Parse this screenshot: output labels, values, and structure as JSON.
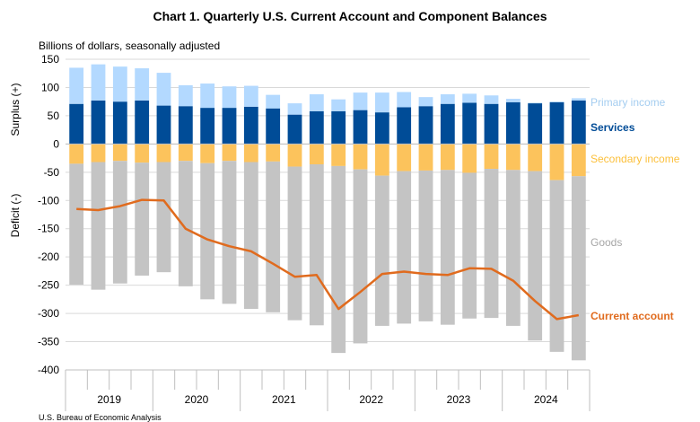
{
  "chart_data": {
    "type": "bar",
    "title": "Chart 1. Quarterly U.S. Current Account and Component Balances",
    "subtitle": "Billions of dollars, seasonally adjusted",
    "ylabel_top": "Surplus (+)",
    "ylabel_bottom": "Deficit (-)",
    "source": "U.S. Bureau of Economic Analysis",
    "ylim": [
      -400,
      150
    ],
    "yticks": [
      150,
      100,
      50,
      0,
      -50,
      -100,
      -150,
      -200,
      -250,
      -300,
      -350,
      -400
    ],
    "years": [
      "2019",
      "2020",
      "2021",
      "2022",
      "2023",
      "2024"
    ],
    "quarters_per_year": 4,
    "stacked": true,
    "series": [
      {
        "name": "Primary income",
        "color": "#b3d9ff",
        "label_color": "#a4cdf0",
        "values": [
          64,
          64,
          62,
          57,
          58,
          37,
          43,
          38,
          37,
          24,
          20,
          30,
          21,
          31,
          35,
          27,
          16,
          17,
          16,
          15,
          6,
          1,
          1,
          4
        ]
      },
      {
        "name": "Services",
        "color": "#004c97",
        "label_color": "#004c97",
        "values": [
          71,
          77,
          75,
          77,
          68,
          67,
          64,
          64,
          66,
          63,
          52,
          58,
          58,
          60,
          56,
          65,
          67,
          71,
          73,
          71,
          74,
          72,
          74,
          77
        ]
      },
      {
        "name": "Secondary income",
        "color": "#fcc35c",
        "label_color": "#fcc03c",
        "values": [
          -35,
          -32,
          -30,
          -33,
          -32,
          -30,
          -34,
          -30,
          -32,
          -31,
          -40,
          -36,
          -39,
          -45,
          -56,
          -48,
          -47,
          -46,
          -51,
          -44,
          -46,
          -48,
          -64,
          -57
        ]
      },
      {
        "name": "Goods",
        "color": "#c4c4c4",
        "label_color": "#a6a6a6",
        "values": [
          -214,
          -226,
          -217,
          -200,
          -195,
          -222,
          -241,
          -253,
          -260,
          -267,
          -272,
          -285,
          -331,
          -308,
          -266,
          -270,
          -267,
          -274,
          -258,
          -264,
          -276,
          -300,
          -304,
          -326
        ]
      },
      {
        "name": "Current account",
        "type": "line",
        "color": "#e06b1e",
        "label_color": "#e06b1e",
        "values": [
          -115,
          -117,
          -110,
          -99,
          -100,
          -150,
          -169,
          -181,
          -190,
          -212,
          -235,
          -232,
          -292,
          -262,
          -230,
          -226,
          -230,
          -232,
          -220,
          -221,
          -242,
          -278,
          -310,
          -303
        ]
      }
    ]
  }
}
